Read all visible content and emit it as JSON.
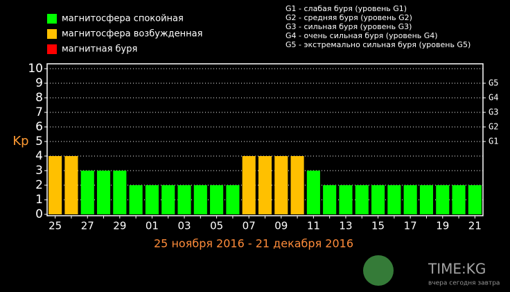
{
  "chart_data": {
    "type": "bar",
    "categories": [
      "25",
      null,
      "27",
      null,
      "29",
      null,
      "01",
      null,
      "03",
      null,
      "05",
      null,
      "07",
      null,
      "09",
      null,
      "11",
      null,
      "13",
      null,
      "15",
      null,
      "17",
      null,
      "19",
      null,
      "21"
    ],
    "values": [
      4,
      4,
      3,
      3,
      3,
      2,
      2,
      2,
      2,
      2,
      2,
      2,
      4,
      4,
      4,
      4,
      3,
      2,
      2,
      2,
      2,
      2,
      2,
      2,
      2,
      2,
      2
    ],
    "colors": [
      "#ffc000",
      "#ffc000",
      "#00ff00",
      "#00ff00",
      "#00ff00",
      "#00ff00",
      "#00ff00",
      "#00ff00",
      "#00ff00",
      "#00ff00",
      "#00ff00",
      "#00ff00",
      "#ffc000",
      "#ffc000",
      "#ffc000",
      "#ffc000",
      "#00ff00",
      "#00ff00",
      "#00ff00",
      "#00ff00",
      "#00ff00",
      "#00ff00",
      "#00ff00",
      "#00ff00",
      "#00ff00",
      "#00ff00",
      "#00ff00"
    ],
    "legend": [
      {
        "name": "магнитосфера спокойная",
        "color": "#00ff00"
      },
      {
        "name": "магнитосфера возбужденная",
        "color": "#ffc000"
      },
      {
        "name": "магнитная буря",
        "color": "#ff0000"
      }
    ],
    "storm_levels": [
      "G1 - слабая буря (уровень G1)",
      "G2 - средняя буря (уровень G2)",
      "G3 - сильная буря (уровень G3)",
      "G4 - очень сильная буря (уровень G4)",
      "G5 - экстремально сильная буря (уровень G5)"
    ],
    "ylabel": "Kp",
    "xlabel": "25 ноября 2016 - 21 декабря 2016",
    "ylim": [
      0,
      10
    ],
    "yticks": [
      0,
      1,
      2,
      3,
      4,
      5,
      6,
      7,
      8,
      9,
      10
    ],
    "y2lim": [
      0,
      10
    ],
    "y2ticks": [
      {
        "value": 5,
        "label": "G1"
      },
      {
        "value": 6,
        "label": "G2"
      },
      {
        "value": 7,
        "label": "G3"
      },
      {
        "value": 8,
        "label": "G4"
      },
      {
        "value": 9,
        "label": "G5"
      }
    ],
    "grid": true
  },
  "watermark": {
    "title": "TIME:KG",
    "tagline": "вчера сегодня завтра"
  }
}
